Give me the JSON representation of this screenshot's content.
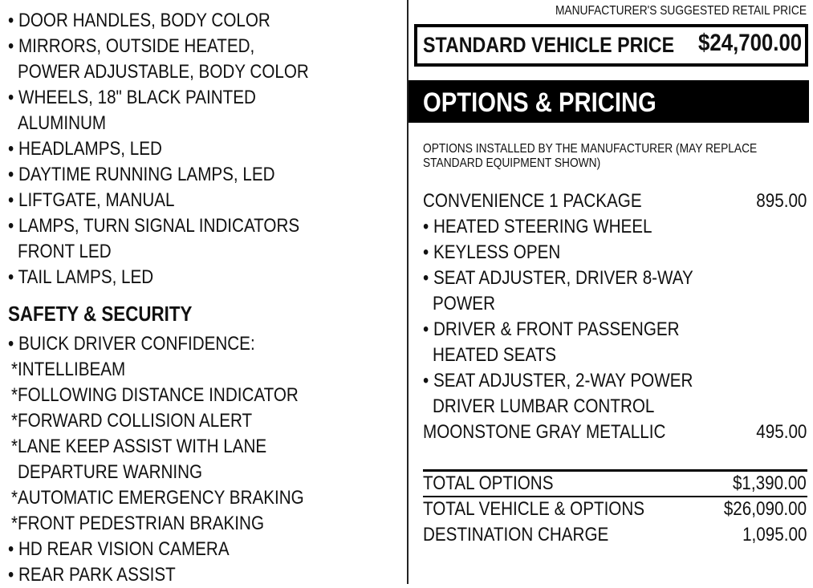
{
  "left": {
    "exterior_items": [
      [
        "• DOOR HANDLES, BODY COLOR"
      ],
      [
        "• MIRRORS, OUTSIDE HEATED,",
        "POWER ADJUSTABLE, BODY COLOR"
      ],
      [
        "• WHEELS, 18\" BLACK PAINTED",
        "ALUMINUM"
      ],
      [
        "• HEADLAMPS, LED"
      ],
      [
        "• DAYTIME RUNNING LAMPS, LED"
      ],
      [
        "• LIFTGATE, MANUAL"
      ],
      [
        "• LAMPS, TURN SIGNAL INDICATORS",
        "FRONT LED"
      ],
      [
        "• TAIL LAMPS, LED"
      ]
    ],
    "safety_heading": "SAFETY & SECURITY",
    "safety_lines": [
      "• BUICK DRIVER CONFIDENCE:",
      " *INTELLIBEAM",
      " *FOLLOWING DISTANCE INDICATOR",
      " *FORWARD COLLISION ALERT",
      " *LANE KEEP ASSIST WITH LANE",
      "  DEPARTURE WARNING",
      " *AUTOMATIC EMERGENCY BRAKING",
      " *FRONT PEDESTRIAN BRAKING",
      "• HD REAR VISION CAMERA",
      "• REAR PARK ASSIST"
    ]
  },
  "right": {
    "msrp_label": "MANUFACTURER'S SUGGESTED RETAIL PRICE",
    "standard_label": "STANDARD VEHICLE PRICE",
    "standard_price": "$24,700.00",
    "options_heading": "OPTIONS & PRICING",
    "options_note": [
      "OPTIONS INSTALLED BY THE MANUFACTURER (MAY REPLACE",
      "STANDARD EQUIPMENT SHOWN)"
    ],
    "options_lines": [
      {
        "text": "CONVENIENCE 1 PACKAGE",
        "price": "895.00"
      },
      {
        "text": "• HEATED STEERING WHEEL",
        "price": ""
      },
      {
        "text": "• KEYLESS OPEN",
        "price": ""
      },
      {
        "text": "• SEAT ADJUSTER, DRIVER 8-WAY",
        "price": ""
      },
      {
        "text": "   POWER",
        "price": ""
      },
      {
        "text": "• DRIVER & FRONT PASSENGER",
        "price": ""
      },
      {
        "text": "   HEATED SEATS",
        "price": ""
      },
      {
        "text": "• SEAT ADJUSTER, 2-WAY POWER",
        "price": ""
      },
      {
        "text": "   DRIVER LUMBAR CONTROL",
        "price": ""
      },
      {
        "text": "MOONSTONE GRAY METALLIC",
        "price": "495.00"
      }
    ],
    "totals": [
      {
        "label": "TOTAL OPTIONS",
        "value": "$1,390.00"
      },
      {
        "label": "TOTAL VEHICLE & OPTIONS",
        "value": "$26,090.00"
      },
      {
        "label": "DESTINATION CHARGE",
        "value": "1,095.00"
      }
    ]
  }
}
